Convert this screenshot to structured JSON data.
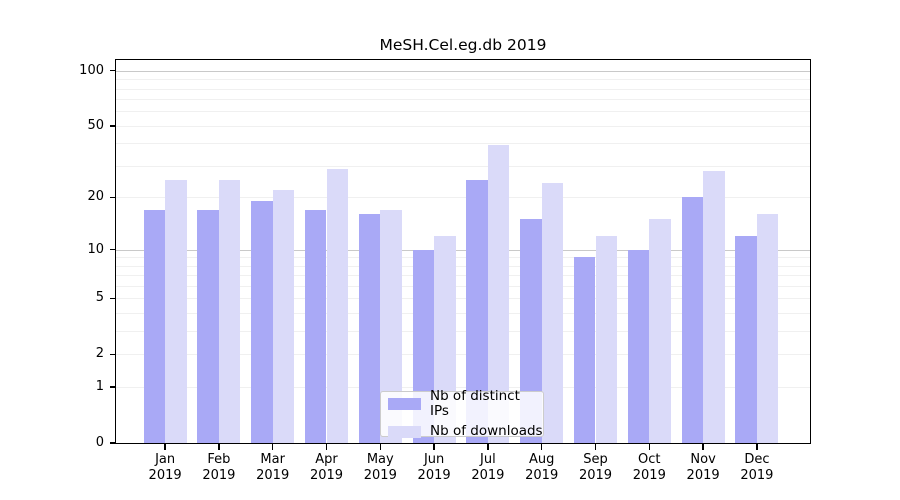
{
  "chart_data": {
    "type": "bar",
    "title": "MeSH.Cel.eg.db 2019",
    "x": {
      "categories": [
        "Jan",
        "Feb",
        "Mar",
        "Apr",
        "May",
        "Jun",
        "Jul",
        "Aug",
        "Sep",
        "Oct",
        "Nov",
        "Dec"
      ],
      "year_label": "2019"
    },
    "series": [
      {
        "name": "Nb of distinct IPs",
        "color": "#a9a9f6",
        "values": [
          17,
          17,
          19,
          17,
          16,
          10,
          25,
          15,
          9,
          10,
          20,
          12
        ]
      },
      {
        "name": "Nb of downloads",
        "color": "#dadaf9",
        "values": [
          25,
          25,
          22,
          29,
          17,
          12,
          39,
          24,
          12,
          15,
          28,
          16
        ]
      }
    ],
    "y_axis": {
      "scale": "log10(1+x)",
      "tick_labels": [
        0,
        1,
        2,
        5,
        10,
        20,
        50,
        100
      ],
      "top_value": 114
    },
    "grid": {
      "minor_lines": [
        1,
        2,
        3,
        4,
        5,
        6,
        7,
        8,
        9,
        20,
        30,
        40,
        50,
        60,
        70,
        80,
        90
      ],
      "major_lines": [
        10,
        100
      ],
      "minor_color": "#f0f0f0",
      "major_color": "#c9c9c9"
    },
    "legend": {
      "position": "bottom-center-inside",
      "entries": [
        "Nb of distinct IPs",
        "Nb of downloads"
      ]
    }
  }
}
